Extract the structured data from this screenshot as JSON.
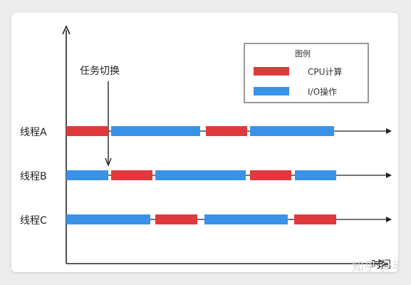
{
  "colors": {
    "cpu": "#e0393d",
    "io": "#3a92e8",
    "axis": "#222222",
    "legend_border": "#555555"
  },
  "diagram": {
    "annotation": "任务切换",
    "time_axis_label": "时间",
    "legend": {
      "title": "图例",
      "items": [
        {
          "label": "CPU计算",
          "kind": "cpu"
        },
        {
          "label": "I/O操作",
          "kind": "io"
        }
      ]
    },
    "threads": [
      {
        "label": "线程A",
        "segments": [
          {
            "kind": "cpu",
            "start": 0,
            "end": 59
          },
          {
            "kind": "io",
            "start": 63,
            "end": 188
          },
          {
            "kind": "cpu",
            "start": 196,
            "end": 254
          },
          {
            "kind": "io",
            "start": 258,
            "end": 376
          }
        ]
      },
      {
        "label": "线程B",
        "segments": [
          {
            "kind": "io",
            "start": 0,
            "end": 59
          },
          {
            "kind": "cpu",
            "start": 63,
            "end": 121
          },
          {
            "kind": "io",
            "start": 125,
            "end": 252
          },
          {
            "kind": "cpu",
            "start": 258,
            "end": 316
          },
          {
            "kind": "io",
            "start": 321,
            "end": 379
          }
        ]
      },
      {
        "label": "线程C",
        "segments": [
          {
            "kind": "io",
            "start": 0,
            "end": 118
          },
          {
            "kind": "cpu",
            "start": 125,
            "end": 184
          },
          {
            "kind": "io",
            "start": 194,
            "end": 311
          },
          {
            "kind": "cpu",
            "start": 320,
            "end": 379
          }
        ]
      }
    ]
  },
  "watermark": "知乎 @半"
}
